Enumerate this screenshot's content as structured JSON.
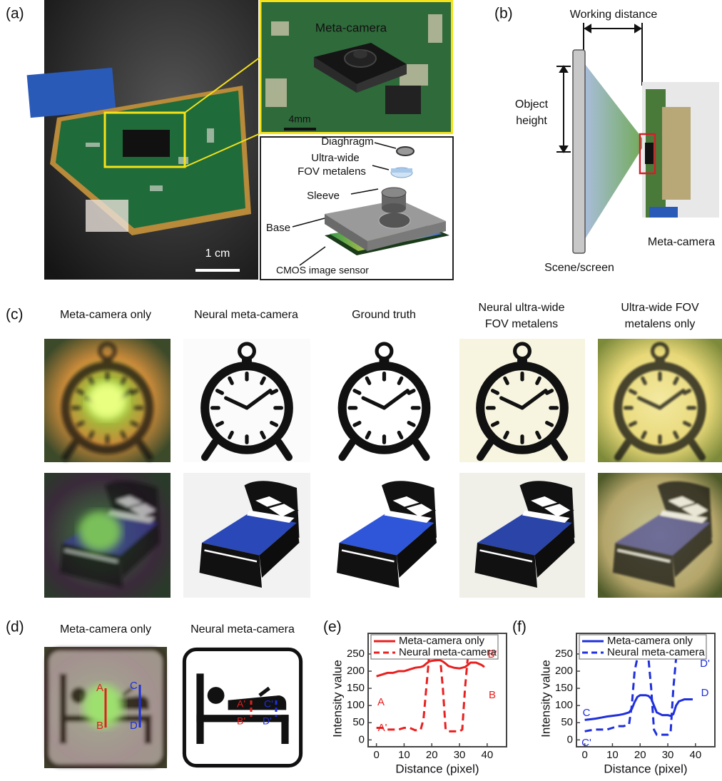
{
  "panel_labels": [
    "(a)",
    "(b)",
    "(c)",
    "(d)",
    "(e)",
    "(f)"
  ],
  "panel_a": {
    "inset_title": "Meta-camera",
    "inset_scale": "4mm",
    "photo_scale": "1 cm",
    "parts": [
      "Diaghragm",
      [
        "Ultra-wide",
        "FOV metalens"
      ],
      "Sleeve",
      "Base",
      "CMOS image sensor"
    ]
  },
  "panel_b": {
    "working_distance": "Working distance",
    "object_height": [
      "Object",
      "height"
    ],
    "camera": "Meta-camera",
    "screen": "Scene/screen"
  },
  "panel_c": {
    "columns": [
      [
        "Meta-camera only"
      ],
      [
        "Neural meta-camera"
      ],
      [
        "Ground truth"
      ],
      [
        "Neural ultra-wide",
        "FOV metalens"
      ],
      [
        "Ultra-wide FOV",
        "metalens only"
      ]
    ]
  },
  "panel_d": {
    "columns": [
      "Meta-camera only",
      "Neural meta-camera"
    ],
    "markers": [
      [
        "A",
        "B",
        "C",
        "D"
      ],
      [
        "A'",
        "B'",
        "C'",
        "D'"
      ]
    ]
  },
  "chart_data": [
    {
      "type": "line",
      "x_label": "Distance (pixel)",
      "y_label": "Intensity value",
      "x": [
        0,
        2,
        4,
        6,
        8,
        10,
        12,
        14,
        16,
        17,
        18,
        19,
        20,
        22,
        23,
        24,
        25,
        26,
        28,
        30,
        31,
        32,
        33,
        34,
        36,
        38,
        39
      ],
      "series": [
        {
          "name": "Meta-camera only",
          "color": "#e8201f",
          "linestyle": "solid",
          "values": [
            185,
            190,
            195,
            195,
            200,
            200,
            205,
            210,
            212,
            215,
            222,
            228,
            230,
            232,
            232,
            228,
            222,
            215,
            210,
            208,
            210,
            212,
            218,
            225,
            225,
            218,
            212
          ]
        },
        {
          "name": "Neural meta-camera",
          "color": "#e8201f",
          "linestyle": "dashed",
          "values": [
            35,
            35,
            30,
            30,
            30,
            35,
            35,
            28,
            30,
            60,
            150,
            240,
            240,
            240,
            240,
            150,
            30,
            25,
            25,
            25,
            30,
            150,
            240,
            240,
            240,
            240,
            240
          ]
        }
      ],
      "xlim": [
        -3,
        47
      ],
      "ylim": [
        -20,
        310
      ],
      "xticks": [
        0,
        10,
        20,
        30,
        40
      ],
      "yticks": [
        0,
        50,
        100,
        150,
        200,
        250
      ],
      "legend": "top",
      "annotations": [
        "A",
        "A'",
        "B'",
        "B"
      ]
    },
    {
      "type": "line",
      "x_label": "Distance (pixel)",
      "y_label": "Intensity value",
      "x": [
        0,
        2,
        4,
        6,
        8,
        10,
        12,
        14,
        16,
        17,
        18,
        19,
        20,
        22,
        23,
        24,
        25,
        26,
        28,
        30,
        31,
        32,
        33,
        34,
        36,
        38,
        39
      ],
      "series": [
        {
          "name": "Meta-camera only",
          "color": "#1f2fdc",
          "linestyle": "solid",
          "values": [
            58,
            60,
            62,
            65,
            68,
            70,
            72,
            75,
            80,
            90,
            110,
            125,
            130,
            130,
            128,
            120,
            100,
            80,
            72,
            72,
            70,
            75,
            100,
            112,
            118,
            118,
            118
          ]
        },
        {
          "name": "Neural meta-camera",
          "color": "#1f2fdc",
          "linestyle": "dashed",
          "values": [
            25,
            28,
            30,
            30,
            30,
            35,
            40,
            40,
            45,
            100,
            200,
            238,
            238,
            238,
            238,
            150,
            30,
            15,
            15,
            15,
            20,
            150,
            238,
            238,
            238,
            238,
            238
          ]
        }
      ],
      "xlim": [
        -3,
        47
      ],
      "ylim": [
        -20,
        310
      ],
      "xticks": [
        0,
        10,
        20,
        30,
        40
      ],
      "yticks": [
        0,
        50,
        100,
        150,
        200,
        250
      ],
      "legend": "top",
      "annotations": [
        "C",
        "C'",
        "D'",
        "D"
      ]
    }
  ]
}
